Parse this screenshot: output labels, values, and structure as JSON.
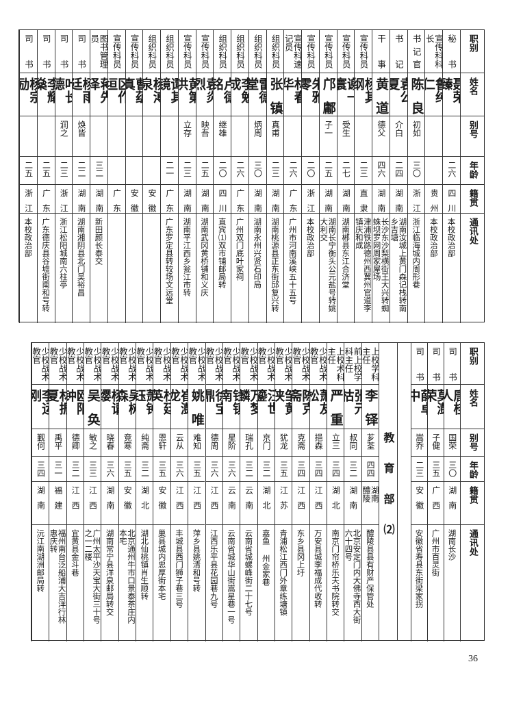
{
  "headers": [
    "职别",
    "姓名",
    "别号",
    "年龄",
    "籍贯",
    "通讯处"
  ],
  "top_table": [
    {
      "title": "秘书",
      "name": "聂荣臻",
      "alias": "",
      "age": "二六",
      "origin": "四川",
      "address": "本校政治部"
    },
    {
      "title": "宣传科科长",
      "name": "鲁纯仁",
      "alias": "",
      "age": "",
      "origin": "贵州",
      "address": "本校政治部"
    },
    {
      "title": "书记官",
      "name": "陈良",
      "alias": "初如",
      "age": "三〇",
      "origin": "浙江",
      "address": "浙江临海城内周形巷"
    },
    {
      "title": "书记",
      "name": "袁公夏",
      "alias": "介白",
      "age": "二四",
      "origin": "湖南",
      "address": "湖南汝城上黄门森记栈转南乡吉塘"
    },
    {
      "title": "干事",
      "name": "黄道",
      "alias": "德父",
      "age": "四六",
      "origin": "湖南",
      "address": "长沙东沙梨横街王大兴转蜘蛛坝罗网周家屋场"
    },
    {
      "title": "宣传科员",
      "name": "杨其纲",
      "alias": "",
      "age": "二三",
      "origin": "直隶",
      "address": "津浦铁路德州西冀州官道李镇庆和成"
    },
    {
      "title": "宣传科员",
      "name": "谢一寰",
      "alias": "受生",
      "age": "二七",
      "origin": "湖南",
      "address": "湖南郴县东江合济堂"
    },
    {
      "title": "宣传科员",
      "name": "邝鄘",
      "alias": "子一",
      "age": "二五",
      "origin": "湖南",
      "address": "湖南长宁衡头公元盐号转姚大利交"
    },
    {
      "title": "宣传科员",
      "name": "朱雅零",
      "alias": "",
      "age": "二〇",
      "origin": "浙江",
      "address": "本校政治部"
    },
    {
      "title": "宣传科速记员",
      "name": "林春华",
      "alias": "",
      "age": "二六",
      "origin": "广东",
      "address": "广州市河南溪峡五十五号"
    },
    {
      "title": "组织科员",
      "name": "张镇",
      "alias": "真甫",
      "age": "二三",
      "origin": "湖南",
      "address": "湖南桃源县正东街邱复兴转"
    },
    {
      "title": "组织科员",
      "name": "雷德堂",
      "alias": "炳周",
      "age": "三〇",
      "origin": "湖南",
      "address": "湖南永州兴贤石印局"
    },
    {
      "title": "组织科员",
      "name": "李勉成",
      "alias": "",
      "age": "二六",
      "origin": "广东",
      "address": "广州双门底叶家祠"
    },
    {
      "title": "组织科员",
      "name": "卢德铭",
      "alias": "继雄",
      "age": "二〇",
      "origin": "四川",
      "address": "直宾⑴双市铺邮局转"
    },
    {
      "title": "宣传科员",
      "name": "袁炎烈",
      "alias": "映吾",
      "age": "二五",
      "origin": "湖南",
      "address": "湖南武冈黄桥铺和义庆"
    },
    {
      "title": "宣传科员",
      "name": "黄第洪",
      "alias": "立存",
      "age": "二三",
      "origin": "湖南",
      "address": "湖南平江西乡瓮江市转"
    },
    {
      "title": "组织科员",
      "name": "谭其镜",
      "alias": "",
      "age": "二一",
      "origin": "广东",
      "address": "广东罗定县转较场文远堂"
    },
    {
      "title": "组织科员",
      "name": "杨溥泉",
      "alias": "",
      "age": "",
      "origin": "安徽",
      "address": ""
    },
    {
      "title": "宣传科员",
      "name": "曹蕴真",
      "alias": "",
      "age": "",
      "origin": "安徽",
      "address": ""
    },
    {
      "title": "宣传科员",
      "name": "区作垣",
      "alias": "",
      "age": "",
      "origin": "广东",
      "address": ""
    },
    {
      "title": "图书管理员",
      "name": "蒋先泽",
      "alias": "",
      "age": "三二",
      "origin": "湖南",
      "address": "新田颜长泰交"
    },
    {
      "title": "司书",
      "name": "杨雨廷",
      "alias": "焕皆",
      "age": "二二",
      "origin": "湖南",
      "address": "湖南湘阴县北门吴裕昌"
    },
    {
      "title": "司书",
      "name": "叶长德",
      "alias": "润之",
      "age": "二三",
      "origin": "浙江",
      "address": "浙江松阳城南六柱亭"
    },
    {
      "title": "司书",
      "name": "李耀燊",
      "alias": "",
      "age": "二五",
      "origin": "广东",
      "address": "广东德庆县谷墟街南和号转"
    },
    {
      "title": "司书",
      "name": "杨宗励",
      "alias": "",
      "age": "二五",
      "origin": "浙江",
      "address": "本校政治部"
    }
  ],
  "bottom_table_right": [
    {
      "title": "司书",
      "name": "唐桂人",
      "alias": "国荣",
      "age": "三〇",
      "origin": "湖南",
      "address": "湖南长沙"
    },
    {
      "title": "司书",
      "name": "莫澍荣",
      "alias": "子健",
      "age": "三五",
      "origin": "广西",
      "address": "广州市百灵街"
    },
    {
      "title": "司书",
      "name": "薛卓中",
      "alias": "嵩乔",
      "age": "二三",
      "origin": "安徽",
      "address": "安徽省寿县东街梁家拐"
    }
  ],
  "section_title": "教育部⑵",
  "bottom_table_left": [
    {
      "title": "上校学科主任",
      "name": "李铎",
      "alias": "芗荃",
      "age": "四四",
      "origin": "湖南醴陵",
      "address": "醴陵县县有财产保管处"
    },
    {
      "title": "前上校学科主任",
      "name": "张元枯",
      "alias": "叔同",
      "age": "三二",
      "origin": "湖南",
      "address": "北京安定门内大佛寺西大街六十四号"
    },
    {
      "title": "上校术科主任",
      "name": "严重",
      "alias": "立三",
      "age": "三四",
      "origin": "湖北",
      "address": "南京门帘桥乐天书院转交"
    },
    {
      "title": "少校战术教官",
      "name": "萧友松",
      "alias": "挹森",
      "age": "三四",
      "origin": "江西",
      "address": "万安县城李福成代收转"
    },
    {
      "title": "少校战术教官",
      "name": "陈克斋",
      "alias": "克斋",
      "age": "三四",
      "origin": "江西",
      "address": "东乡县冈上圩"
    },
    {
      "title": "少校战术教官",
      "name": "邹黄侠",
      "alias": "犹龙",
      "age": "三五",
      "origin": "江苏",
      "address": "青浦松江西门外章练塘镇"
    },
    {
      "title": "少校战术教官",
      "name": "汪世鎏",
      "alias": "京门",
      "age": "三二",
      "origin": "湖北",
      "address": "嘉鱼 州金家巷"
    },
    {
      "title": "少校战术教官",
      "name": "万梦麟",
      "alias": "瑞孔",
      "age": "三二",
      "origin": "云南",
      "address": "云南省城螺峰街二十七号"
    },
    {
      "title": "少校战术教官",
      "name": "钱镇南",
      "alias": "星阶",
      "age": "三六",
      "origin": "云南",
      "address": "云南省城华山街嵩星巷一号"
    },
    {
      "title": "少校战术教官",
      "name": "徐宝鼎",
      "alias": "德周",
      "age": "三六",
      "origin": "江西",
      "address": "江西乐平县花园巷九号"
    },
    {
      "title": "少校战术教官",
      "name": "姚唯",
      "alias": "难知",
      "age": "三五",
      "origin": "江西",
      "address": "萍乡县姚清和号转"
    },
    {
      "title": "少校战术教官",
      "name": "崔澍龙",
      "alias": "云从",
      "age": "三六",
      "origin": "江西",
      "address": "丰城县西门狮子巷三号"
    },
    {
      "title": "少校战术教官",
      "name": "杜廷英",
      "alias": "恩轩",
      "age": "三五",
      "origin": "安徽",
      "address": "巢县城内忠厚街本宅"
    },
    {
      "title": "少校战术教官",
      "name": "萧钟钰",
      "alias": "纯斋",
      "age": "三二",
      "origin": "湖北",
      "address": "湖北仙桃镇肖生顺转"
    },
    {
      "title": "少校战术教官",
      "name": "吴树森",
      "alias": "竞寒",
      "age": "三五",
      "origin": "安徽",
      "address": "北京通州牛市口景泰茶庄内本宅"
    },
    {
      "title": "少校战术教官",
      "name": "杨请缨",
      "alias": "晓春",
      "age": "三六",
      "origin": "湖南",
      "address": "湖南常宁县洋泉邮局转交"
    },
    {
      "title": "少校战术教官",
      "name": "吴奂",
      "alias": "敏之",
      "age": "三三",
      "origin": "江西",
      "address": "广州太平沙天宝大街三十号之一二楼"
    },
    {
      "title": "少校战术教官",
      "name": "欧阳钟",
      "alias": "德卿",
      "age": "三二",
      "origin": "江西",
      "address": "宜黄县金斗巷"
    },
    {
      "title": "少校战术教官",
      "name": "林振夏",
      "alias": "禹平",
      "age": "三一",
      "origin": "福建",
      "address": "福州南台泛船浦大吉洋行林惠庆转"
    },
    {
      "title": "少校战术教官",
      "name": "李运刚",
      "alias": "觐何",
      "age": "三四",
      "origin": "湖南",
      "address": "沅江南湖洲邮局转"
    }
  ],
  "page_number": "36"
}
